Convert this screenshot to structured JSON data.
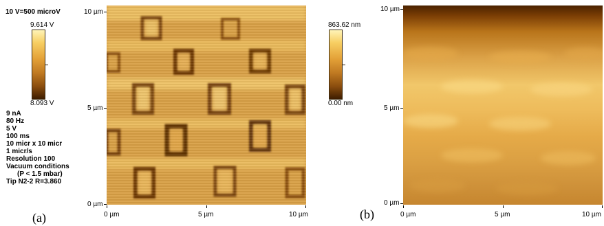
{
  "panel_a": {
    "scale_header": "10 V=500 microV",
    "scale_max": "9.614 V",
    "scale_min": "8.093 V",
    "params": [
      "9 nA",
      "80 Hz",
      "5 V",
      "100 ms",
      "10 micr x 10 micr",
      "1 micr/s",
      "Resolution 100",
      "Vacuum conditions",
      "(P < 1.5 mbar)",
      "Tip N2-2  R=3.860"
    ],
    "y_ticks": [
      "10 µm",
      "5 µm",
      "0 µm"
    ],
    "x_ticks": [
      "0 µm",
      "5 µm",
      "10 µm"
    ],
    "label": "(a)"
  },
  "panel_b": {
    "scale_max": "863.62 nm",
    "scale_min": "0.00 nm",
    "y_ticks": [
      "10 µm",
      "5 µm",
      "0 µm"
    ],
    "x_ticks": [
      "0 µm",
      "5 µm",
      "10 µm"
    ],
    "label": "(b)"
  },
  "colors": {
    "dark": "#3e1d00",
    "mid": "#dba047",
    "light": "#fff4b8"
  }
}
